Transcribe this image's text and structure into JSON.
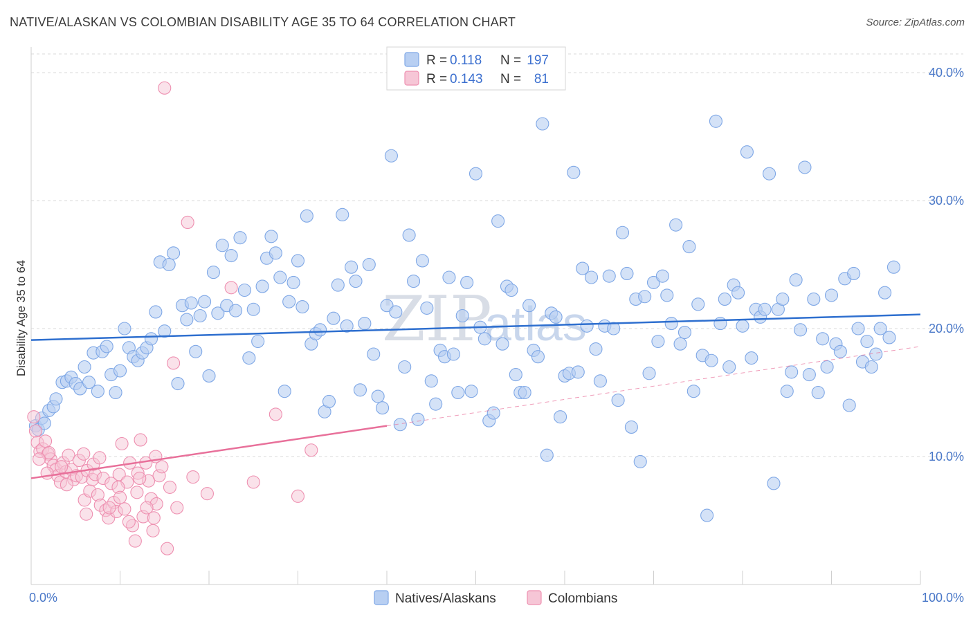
{
  "header": {
    "title": "NATIVE/ALASKAN VS COLOMBIAN DISABILITY AGE 35 TO 64 CORRELATION CHART",
    "source": "Source: ZipAtlas.com"
  },
  "watermark": {
    "text1": "ZIP",
    "text2": "atlas"
  },
  "colors": {
    "natives": "#7ea7e6",
    "natives_fill": "#b8cff2",
    "natives_line": "#2e6fcf",
    "colombians": "#ee8fb0",
    "colombians_fill": "#f6c6d6",
    "colombians_line": "#e8709a",
    "tick_text": "#4a78c8"
  },
  "legend": {
    "rows": [
      {
        "r_label": "R =",
        "r_value": "0.118",
        "n_label": "N =",
        "n_value": "197"
      },
      {
        "r_label": "R =",
        "r_value": "0.143",
        "n_label": "N =",
        "n_value": "81"
      }
    ]
  },
  "chart_data": {
    "type": "scatter",
    "title": "NATIVE/ALASKAN VS COLOMBIAN DISABILITY AGE 35 TO 64 CORRELATION CHART",
    "xlabel": "",
    "ylabel": "Disability Age 35 to 64",
    "xlim": [
      0,
      100
    ],
    "ylim": [
      0,
      42
    ],
    "x_ticks": [
      "0.0%",
      "100.0%"
    ],
    "y_ticks": [
      {
        "value": 10,
        "label": "10.0%"
      },
      {
        "value": 20,
        "label": "20.0%"
      },
      {
        "value": 30,
        "label": "30.0%"
      },
      {
        "value": 40,
        "label": "40.0%"
      }
    ],
    "grid": true,
    "legend_position": "bottom",
    "series": [
      {
        "name": "Natives/Alaskans",
        "R": 0.118,
        "N": 197,
        "trend": {
          "x": [
            0,
            100
          ],
          "y": [
            19.1,
            21.1
          ]
        },
        "points": [
          [
            0.5,
            12.4
          ],
          [
            0.8,
            12.1
          ],
          [
            1.2,
            13.0
          ],
          [
            1.5,
            12.6
          ],
          [
            2.0,
            13.6
          ],
          [
            2.5,
            13.9
          ],
          [
            2.8,
            14.5
          ],
          [
            3.5,
            15.8
          ],
          [
            4.0,
            15.9
          ],
          [
            4.5,
            16.2
          ],
          [
            5.0,
            15.7
          ],
          [
            5.5,
            15.3
          ],
          [
            6.0,
            17.0
          ],
          [
            6.5,
            15.8
          ],
          [
            7.0,
            18.1
          ],
          [
            7.5,
            15.1
          ],
          [
            8.0,
            18.2
          ],
          [
            8.5,
            18.6
          ],
          [
            9.0,
            16.4
          ],
          [
            9.5,
            15.0
          ],
          [
            10.0,
            16.7
          ],
          [
            10.5,
            20.0
          ],
          [
            11.0,
            18.5
          ],
          [
            11.5,
            17.8
          ],
          [
            12.0,
            17.5
          ],
          [
            12.5,
            18.1
          ],
          [
            13.0,
            18.5
          ],
          [
            13.5,
            19.2
          ],
          [
            14.0,
            21.3
          ],
          [
            14.5,
            25.2
          ],
          [
            15.0,
            19.8
          ],
          [
            15.5,
            25.0
          ],
          [
            16.0,
            25.9
          ],
          [
            16.5,
            15.7
          ],
          [
            17.0,
            21.8
          ],
          [
            17.5,
            20.7
          ],
          [
            18.0,
            22.0
          ],
          [
            18.5,
            18.2
          ],
          [
            19.0,
            21.0
          ],
          [
            19.5,
            22.1
          ],
          [
            20.0,
            16.3
          ],
          [
            20.5,
            24.4
          ],
          [
            21.0,
            21.2
          ],
          [
            21.5,
            26.5
          ],
          [
            22.0,
            21.8
          ],
          [
            22.5,
            25.7
          ],
          [
            23.0,
            21.4
          ],
          [
            23.5,
            27.1
          ],
          [
            24.0,
            23.0
          ],
          [
            24.5,
            17.7
          ],
          [
            25.0,
            21.5
          ],
          [
            25.5,
            19.0
          ],
          [
            26.0,
            23.3
          ],
          [
            26.5,
            25.5
          ],
          [
            27.0,
            27.2
          ],
          [
            27.5,
            25.9
          ],
          [
            28.0,
            24.0
          ],
          [
            28.5,
            15.1
          ],
          [
            29.0,
            22.1
          ],
          [
            29.5,
            23.6
          ],
          [
            30.0,
            25.3
          ],
          [
            30.5,
            21.7
          ],
          [
            31.0,
            28.8
          ],
          [
            31.5,
            18.8
          ],
          [
            32.0,
            19.6
          ],
          [
            32.5,
            19.9
          ],
          [
            33.0,
            13.5
          ],
          [
            33.5,
            14.3
          ],
          [
            34.0,
            20.8
          ],
          [
            34.5,
            23.4
          ],
          [
            35.0,
            28.9
          ],
          [
            35.5,
            20.2
          ],
          [
            36.0,
            24.8
          ],
          [
            36.5,
            23.7
          ],
          [
            37.0,
            15.2
          ],
          [
            37.5,
            20.4
          ],
          [
            38.0,
            25.0
          ],
          [
            38.5,
            18.0
          ],
          [
            39.0,
            14.7
          ],
          [
            39.5,
            13.8
          ],
          [
            40.0,
            21.8
          ],
          [
            40.5,
            33.5
          ],
          [
            41.0,
            21.3
          ],
          [
            41.5,
            12.5
          ],
          [
            42.0,
            17.0
          ],
          [
            42.5,
            27.3
          ],
          [
            43.0,
            23.7
          ],
          [
            43.5,
            12.9
          ],
          [
            44.0,
            25.3
          ],
          [
            44.5,
            21.6
          ],
          [
            45.0,
            15.9
          ],
          [
            45.5,
            14.1
          ],
          [
            46.0,
            18.3
          ],
          [
            46.5,
            17.8
          ],
          [
            47.0,
            24.0
          ],
          [
            47.5,
            18.0
          ],
          [
            48.0,
            15.0
          ],
          [
            48.5,
            21.0
          ],
          [
            49.0,
            23.6
          ],
          [
            49.5,
            15.1
          ],
          [
            50.0,
            32.1
          ],
          [
            50.5,
            20.1
          ],
          [
            51.0,
            19.2
          ],
          [
            51.5,
            12.8
          ],
          [
            52.0,
            13.4
          ],
          [
            52.5,
            28.4
          ],
          [
            53.0,
            18.8
          ],
          [
            53.5,
            23.3
          ],
          [
            54.0,
            23.0
          ],
          [
            54.5,
            16.4
          ],
          [
            55.0,
            15.0
          ],
          [
            55.5,
            15.0
          ],
          [
            56.0,
            21.8
          ],
          [
            56.5,
            18.3
          ],
          [
            57.0,
            17.8
          ],
          [
            57.5,
            36.0
          ],
          [
            58.0,
            10.1
          ],
          [
            58.5,
            21.2
          ],
          [
            59.0,
            20.9
          ],
          [
            59.5,
            13.1
          ],
          [
            60.0,
            16.3
          ],
          [
            60.5,
            16.5
          ],
          [
            61.0,
            32.2
          ],
          [
            61.5,
            16.6
          ],
          [
            62.0,
            24.7
          ],
          [
            62.5,
            20.2
          ],
          [
            63.0,
            24.0
          ],
          [
            63.5,
            18.4
          ],
          [
            64.0,
            15.9
          ],
          [
            64.5,
            20.2
          ],
          [
            65.0,
            24.1
          ],
          [
            65.5,
            20.0
          ],
          [
            66.0,
            14.4
          ],
          [
            66.5,
            27.5
          ],
          [
            67.0,
            24.3
          ],
          [
            67.5,
            12.3
          ],
          [
            68.0,
            22.3
          ],
          [
            68.5,
            9.6
          ],
          [
            69.0,
            22.5
          ],
          [
            69.5,
            16.5
          ],
          [
            70.0,
            23.6
          ],
          [
            70.5,
            19.0
          ],
          [
            71.0,
            24.1
          ],
          [
            71.5,
            22.6
          ],
          [
            72.0,
            20.4
          ],
          [
            72.5,
            28.1
          ],
          [
            73.0,
            18.8
          ],
          [
            73.5,
            19.7
          ],
          [
            74.0,
            26.4
          ],
          [
            74.5,
            15.1
          ],
          [
            75.0,
            21.9
          ],
          [
            75.5,
            17.9
          ],
          [
            76.0,
            5.4
          ],
          [
            76.5,
            17.5
          ],
          [
            77.0,
            36.2
          ],
          [
            77.5,
            20.4
          ],
          [
            78.0,
            22.3
          ],
          [
            78.5,
            17.0
          ],
          [
            79.0,
            23.4
          ],
          [
            79.5,
            22.8
          ],
          [
            80.0,
            20.2
          ],
          [
            80.5,
            33.8
          ],
          [
            81.0,
            17.7
          ],
          [
            81.5,
            21.5
          ],
          [
            82.0,
            20.9
          ],
          [
            82.5,
            21.5
          ],
          [
            83.0,
            32.1
          ],
          [
            83.5,
            7.9
          ],
          [
            84.0,
            21.5
          ],
          [
            84.5,
            22.3
          ],
          [
            85.0,
            15.1
          ],
          [
            85.5,
            16.6
          ],
          [
            86.0,
            23.8
          ],
          [
            86.5,
            19.9
          ],
          [
            87.0,
            32.6
          ],
          [
            87.5,
            16.4
          ],
          [
            88.0,
            22.3
          ],
          [
            88.5,
            15.0
          ],
          [
            89.0,
            19.2
          ],
          [
            89.5,
            17.0
          ],
          [
            90.0,
            22.6
          ],
          [
            90.5,
            18.8
          ],
          [
            91.0,
            18.2
          ],
          [
            91.5,
            23.9
          ],
          [
            92.0,
            14.0
          ],
          [
            92.5,
            24.3
          ],
          [
            93.0,
            20.0
          ],
          [
            93.5,
            17.4
          ],
          [
            94.0,
            19.0
          ],
          [
            94.5,
            17.0
          ],
          [
            95.0,
            18.0
          ],
          [
            95.5,
            20.0
          ],
          [
            96.0,
            22.8
          ],
          [
            96.5,
            19.3
          ],
          [
            97.0,
            24.8
          ]
        ]
      },
      {
        "name": "Colombians",
        "R": 0.143,
        "N": 81,
        "trend": {
          "x": [
            0,
            40
          ],
          "y": [
            8.3,
            12.4
          ]
        },
        "trend_dashed": {
          "x": [
            40,
            100
          ],
          "y": [
            12.4,
            18.6
          ]
        },
        "points": [
          [
            0.3,
            13.1
          ],
          [
            0.5,
            12.0
          ],
          [
            0.7,
            11.1
          ],
          [
            1.0,
            10.4
          ],
          [
            1.3,
            10.6
          ],
          [
            1.6,
            11.2
          ],
          [
            1.9,
            10.2
          ],
          [
            2.2,
            9.8
          ],
          [
            2.5,
            9.3
          ],
          [
            2.8,
            9.0
          ],
          [
            3.0,
            8.5
          ],
          [
            3.3,
            8.0
          ],
          [
            3.6,
            9.5
          ],
          [
            3.9,
            8.8
          ],
          [
            4.2,
            10.1
          ],
          [
            4.5,
            9.0
          ],
          [
            4.8,
            8.2
          ],
          [
            5.1,
            8.5
          ],
          [
            5.4,
            9.7
          ],
          [
            5.7,
            8.4
          ],
          [
            6.0,
            6.6
          ],
          [
            6.3,
            8.9
          ],
          [
            6.6,
            7.3
          ],
          [
            6.9,
            8.2
          ],
          [
            7.2,
            8.6
          ],
          [
            7.5,
            7.0
          ],
          [
            7.8,
            6.2
          ],
          [
            8.1,
            8.3
          ],
          [
            8.4,
            5.8
          ],
          [
            8.7,
            5.2
          ],
          [
            9.0,
            7.9
          ],
          [
            9.3,
            6.4
          ],
          [
            9.6,
            5.7
          ],
          [
            9.9,
            8.6
          ],
          [
            10.2,
            11.0
          ],
          [
            10.5,
            5.9
          ],
          [
            10.8,
            8.0
          ],
          [
            11.1,
            9.5
          ],
          [
            11.4,
            4.6
          ],
          [
            11.7,
            3.4
          ],
          [
            12.0,
            8.7
          ],
          [
            12.3,
            11.3
          ],
          [
            12.6,
            5.3
          ],
          [
            12.9,
            9.5
          ],
          [
            13.2,
            8.1
          ],
          [
            13.5,
            6.7
          ],
          [
            13.8,
            5.2
          ],
          [
            14.1,
            6.3
          ],
          [
            14.4,
            8.5
          ],
          [
            14.7,
            9.2
          ],
          [
            15.0,
            38.8
          ],
          [
            15.3,
            2.8
          ],
          [
            15.6,
            7.6
          ],
          [
            16.0,
            17.3
          ],
          [
            16.4,
            6.0
          ],
          [
            17.6,
            28.3
          ],
          [
            18.2,
            8.4
          ],
          [
            19.8,
            7.1
          ],
          [
            22.5,
            23.2
          ],
          [
            25.0,
            8.0
          ],
          [
            27.5,
            13.3
          ],
          [
            30.0,
            6.9
          ],
          [
            31.5,
            10.5
          ],
          [
            2.0,
            10.3
          ],
          [
            3.4,
            9.2
          ],
          [
            5.9,
            10.2
          ],
          [
            7.0,
            9.4
          ],
          [
            8.8,
            6.0
          ],
          [
            9.8,
            7.6
          ],
          [
            11.0,
            4.9
          ],
          [
            12.2,
            8.3
          ],
          [
            13.0,
            6.0
          ],
          [
            14.0,
            10.0
          ],
          [
            0.9,
            9.8
          ],
          [
            1.8,
            8.7
          ],
          [
            4.0,
            7.8
          ],
          [
            6.2,
            5.5
          ],
          [
            7.7,
            9.9
          ],
          [
            10.0,
            6.8
          ],
          [
            11.9,
            7.2
          ],
          [
            13.7,
            4.2
          ]
        ]
      }
    ]
  },
  "bottom_legend": {
    "items": [
      "Natives/Alaskans",
      "Colombians"
    ]
  }
}
